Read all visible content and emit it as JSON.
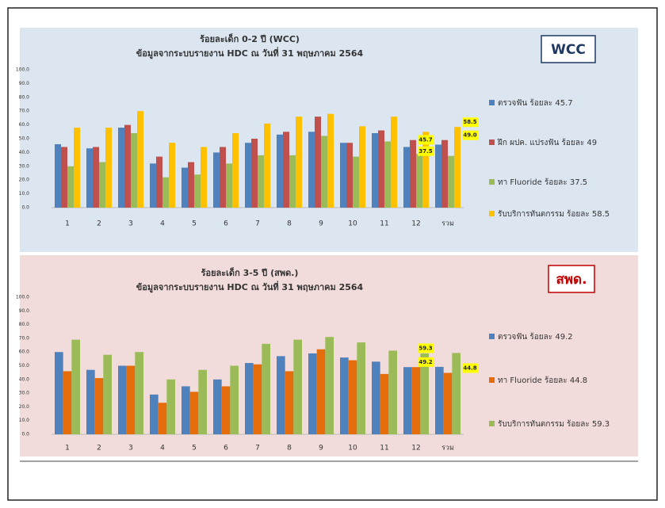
{
  "chart_data": [
    {
      "type": "bar",
      "title": "ร้อยละเด็ก 0-2 ปี (WCC)",
      "subtitle": "ข้อมูลจากระบบรายงาน HDC ณ วันที่ 31 พฤษภาคม 2564",
      "badge": "WCC",
      "categories": [
        "1",
        "2",
        "3",
        "4",
        "5",
        "6",
        "7",
        "8",
        "9",
        "10",
        "11",
        "12",
        "รวม"
      ],
      "series": [
        {
          "name": "ตรวจฟัน ร้อยละ 45.7",
          "color": "#4f81bd",
          "values": [
            46,
            43,
            58,
            32,
            29,
            40,
            47,
            53,
            55,
            47,
            54,
            44,
            45.7
          ],
          "value_labels": [
            null,
            null,
            null,
            null,
            null,
            null,
            null,
            null,
            null,
            null,
            null,
            null,
            "45.7"
          ]
        },
        {
          "name": "ฝึก ผปค. แปรงฟัน ร้อยละ 49",
          "color": "#c0504d",
          "values": [
            44,
            44,
            60,
            37,
            33,
            44,
            50,
            55,
            66,
            47,
            56,
            49,
            49
          ],
          "value_labels": [
            null,
            null,
            null,
            null,
            null,
            null,
            null,
            null,
            null,
            null,
            null,
            null,
            "49.0"
          ]
        },
        {
          "name": "ทา Fluoride ร้อยละ 37.5",
          "color": "#9bbb59",
          "values": [
            30,
            33,
            54,
            22,
            24,
            32,
            38,
            38,
            52,
            37,
            48,
            39,
            37.5
          ],
          "value_labels": [
            null,
            null,
            null,
            null,
            null,
            null,
            null,
            null,
            null,
            null,
            null,
            null,
            "37.5"
          ]
        },
        {
          "name": "รับบริการทันตกรรม ร้อยละ 58.5",
          "color": "#ffc000",
          "values": [
            58,
            58,
            70,
            47,
            44,
            54,
            61,
            66,
            68,
            59,
            66,
            55,
            58.5
          ],
          "value_labels": [
            null,
            null,
            null,
            null,
            null,
            null,
            null,
            null,
            null,
            null,
            null,
            null,
            "58.5"
          ]
        }
      ],
      "ylim": [
        0,
        100
      ],
      "yticks": [
        {
          "value": 0,
          "label": "0.0"
        },
        {
          "value": 10,
          "label": "10.0"
        },
        {
          "value": 20,
          "label": "20.0"
        },
        {
          "value": 30,
          "label": "30.0"
        },
        {
          "value": 40,
          "label": "40.0"
        },
        {
          "value": 50,
          "label": "50.0"
        },
        {
          "value": 60,
          "label": "60.0"
        },
        {
          "value": 70,
          "label": "70.0"
        },
        {
          "value": 80,
          "label": "80.0"
        },
        {
          "value": 90,
          "label": "90.0"
        },
        {
          "value": 100,
          "label": "100.0"
        }
      ],
      "grid": false,
      "legend": "right"
    },
    {
      "type": "bar",
      "title": "ร้อยละเด็ก 3-5 ปี (สพด.)",
      "subtitle": "ข้อมูลจากระบบรายงาน HDC ณ วันที่ 31 พฤษภาคม 2564",
      "badge": "สพด.",
      "categories": [
        "1",
        "2",
        "3",
        "4",
        "5",
        "6",
        "7",
        "8",
        "9",
        "10",
        "11",
        "12",
        "รวม"
      ],
      "series": [
        {
          "name": "ตรวจฟัน ร้อยละ 49.2",
          "color": "#4f81bd",
          "values": [
            60,
            47,
            50,
            29,
            35,
            40,
            52,
            57,
            59,
            56,
            53,
            49,
            49.2
          ],
          "value_labels": [
            null,
            null,
            null,
            null,
            null,
            null,
            null,
            null,
            null,
            null,
            null,
            null,
            "49.2"
          ]
        },
        {
          "name": "ทา Fluoride ร้อยละ 44.8",
          "color": "#e46c0a",
          "values": [
            46,
            41,
            50,
            23,
            31,
            35,
            51,
            46,
            62,
            54,
            44,
            49,
            44.8
          ],
          "value_labels": [
            null,
            null,
            null,
            null,
            null,
            null,
            null,
            null,
            null,
            null,
            null,
            null,
            "44.8"
          ]
        },
        {
          "name": "รับบริการทันตกรรม ร้อยละ 59.3",
          "color": "#9bbb59",
          "values": [
            69,
            58,
            60,
            40,
            47,
            50,
            66,
            69,
            71,
            67,
            61,
            59,
            59.3
          ],
          "value_labels": [
            null,
            null,
            null,
            null,
            null,
            null,
            null,
            null,
            null,
            null,
            null,
            null,
            "59.3"
          ]
        }
      ],
      "ylim": [
        0,
        100
      ],
      "yticks": [
        {
          "value": 0,
          "label": "0.0"
        },
        {
          "value": 10,
          "label": "10.0"
        },
        {
          "value": 20,
          "label": "20.0"
        },
        {
          "value": 30,
          "label": "30.0"
        },
        {
          "value": 40,
          "label": "40.0"
        },
        {
          "value": 50,
          "label": "50.0"
        },
        {
          "value": 60,
          "label": "60.0"
        },
        {
          "value": 70,
          "label": "70.0"
        },
        {
          "value": 80,
          "label": "80.0"
        },
        {
          "value": 90,
          "label": "90.0"
        },
        {
          "value": 100,
          "label": "100.0"
        }
      ],
      "grid": false,
      "legend": "right"
    }
  ]
}
